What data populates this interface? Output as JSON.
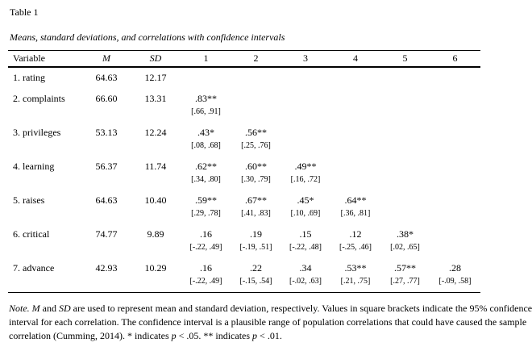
{
  "page": {
    "label": "Table 1",
    "caption": "Means, standard deviations, and correlations with confidence intervals"
  },
  "table": {
    "columns": [
      "Variable",
      "M",
      "SD",
      "1",
      "2",
      "3",
      "4",
      "5",
      "6"
    ],
    "rows": [
      {
        "variable": "1. rating",
        "m": "64.63",
        "sd": "12.17",
        "cors": [
          null,
          null,
          null,
          null,
          null,
          null
        ]
      },
      {
        "variable": "2. complaints",
        "m": "66.60",
        "sd": "13.31",
        "cors": [
          {
            "r": ".83**",
            "ci": "[.66, .91]"
          },
          null,
          null,
          null,
          null,
          null
        ]
      },
      {
        "variable": "3. privileges",
        "m": "53.13",
        "sd": "12.24",
        "cors": [
          {
            "r": ".43*",
            "ci": "[.08, .68]"
          },
          {
            "r": ".56**",
            "ci": "[.25, .76]"
          },
          null,
          null,
          null,
          null
        ]
      },
      {
        "variable": "4. learning",
        "m": "56.37",
        "sd": "11.74",
        "cors": [
          {
            "r": ".62**",
            "ci": "[.34, .80]"
          },
          {
            "r": ".60**",
            "ci": "[.30, .79]"
          },
          {
            "r": ".49**",
            "ci": "[.16, .72]"
          },
          null,
          null,
          null
        ]
      },
      {
        "variable": "5. raises",
        "m": "64.63",
        "sd": "10.40",
        "cors": [
          {
            "r": ".59**",
            "ci": "[.29, .78]"
          },
          {
            "r": ".67**",
            "ci": "[.41, .83]"
          },
          {
            "r": ".45*",
            "ci": "[.10, .69]"
          },
          {
            "r": ".64**",
            "ci": "[.36, .81]"
          },
          null,
          null
        ]
      },
      {
        "variable": "6. critical",
        "m": "74.77",
        "sd": "9.89",
        "cors": [
          {
            "r": ".16",
            "ci": "[-.22, .49]"
          },
          {
            "r": ".19",
            "ci": "[-.19, .51]"
          },
          {
            "r": ".15",
            "ci": "[-.22, .48]"
          },
          {
            "r": ".12",
            "ci": "[-.25, .46]"
          },
          {
            "r": ".38*",
            "ci": "[.02, .65]"
          },
          null
        ]
      },
      {
        "variable": "7. advance",
        "m": "42.93",
        "sd": "10.29",
        "cors": [
          {
            "r": ".16",
            "ci": "[-.22, .49]"
          },
          {
            "r": ".22",
            "ci": "[-.15, .54]"
          },
          {
            "r": ".34",
            "ci": "[-.02, .63]"
          },
          {
            "r": ".53**",
            "ci": "[.21, .75]"
          },
          {
            "r": ".57**",
            "ci": "[.27, .77]"
          },
          {
            "r": ".28",
            "ci": "[-.09, .58]"
          }
        ]
      }
    ]
  },
  "note": {
    "runs": [
      {
        "text": "Note.",
        "italic": true
      },
      {
        "text": " ",
        "italic": false
      },
      {
        "text": "M",
        "italic": true
      },
      {
        "text": " and ",
        "italic": false
      },
      {
        "text": "SD",
        "italic": true
      },
      {
        "text": " are used to represent mean and standard deviation, respectively. Values in square brackets indicate the 95% confidence interval for each correlation. The confidence interval is a plausible range of population correlations that could have caused the sample correlation (Cumming, 2014). * indicates ",
        "italic": false
      },
      {
        "text": "p",
        "italic": true
      },
      {
        "text": " < .05. ** indicates ",
        "italic": false
      },
      {
        "text": "p",
        "italic": true
      },
      {
        "text": " < .01.",
        "italic": false
      }
    ]
  }
}
